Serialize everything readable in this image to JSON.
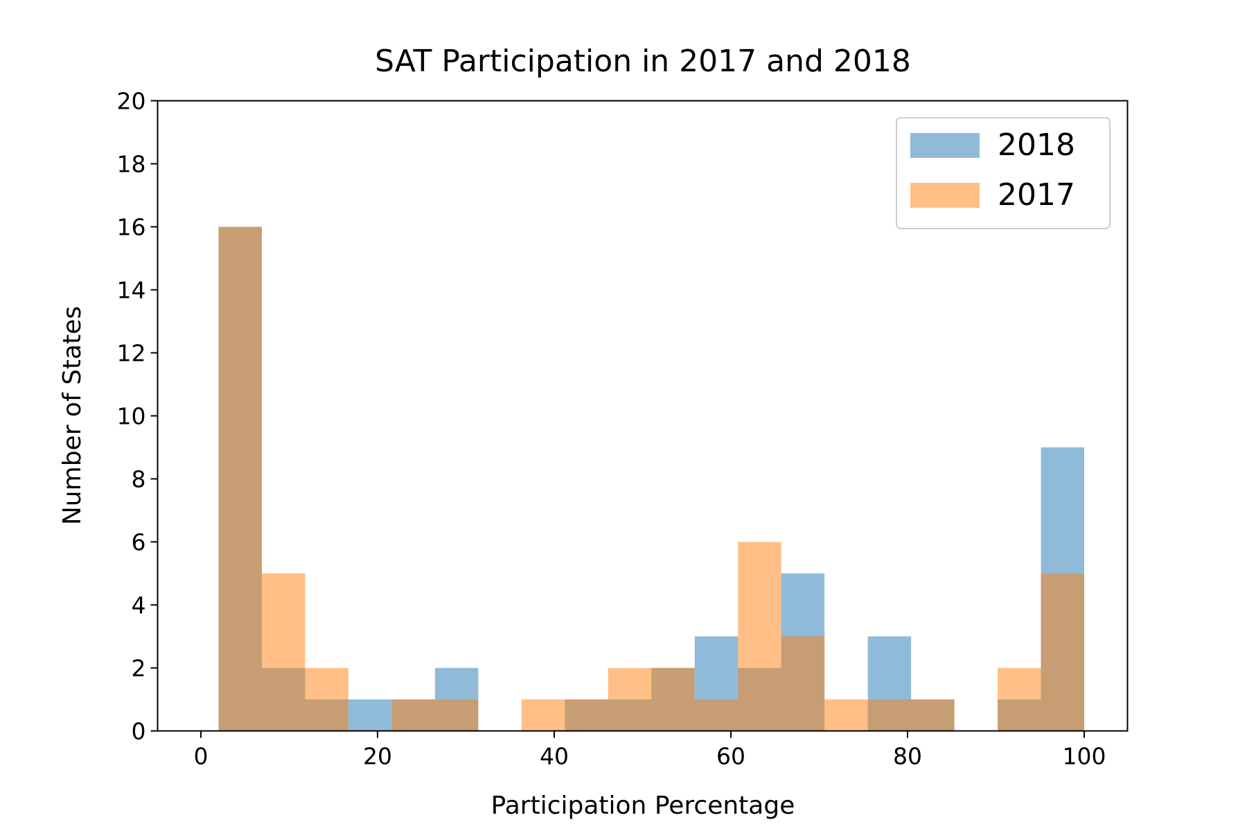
{
  "chart_data": {
    "type": "bar",
    "title": "SAT Participation in 2017 and 2018",
    "xlabel": "Participation Percentage",
    "ylabel": "Number of States",
    "xlim": [
      -4.9,
      104.9
    ],
    "ylim": [
      0,
      20
    ],
    "xticks": [
      0,
      20,
      40,
      60,
      80,
      100
    ],
    "yticks": [
      0,
      2,
      4,
      6,
      8,
      10,
      12,
      14,
      16,
      18,
      20
    ],
    "grid": false,
    "legend_position": "top-right",
    "bin_edges": [
      2.0,
      6.9,
      11.8,
      16.7,
      21.6,
      26.5,
      31.4,
      36.3,
      41.2,
      46.1,
      51.0,
      55.9,
      60.8,
      65.7,
      70.6,
      75.5,
      80.4,
      85.3,
      90.2,
      95.1,
      100.0
    ],
    "series": [
      {
        "name": "2018",
        "color": "#1f77b4",
        "opacity": 0.5,
        "values": [
          16,
          2,
          1,
          1,
          1,
          2,
          0,
          0,
          1,
          1,
          2,
          3,
          2,
          5,
          0,
          3,
          1,
          0,
          1,
          9
        ]
      },
      {
        "name": "2017",
        "color": "#ff7f0e",
        "opacity": 0.5,
        "values": [
          16,
          5,
          2,
          0,
          1,
          1,
          0,
          1,
          1,
          2,
          2,
          1,
          6,
          3,
          1,
          1,
          1,
          0,
          2,
          5
        ]
      }
    ]
  }
}
